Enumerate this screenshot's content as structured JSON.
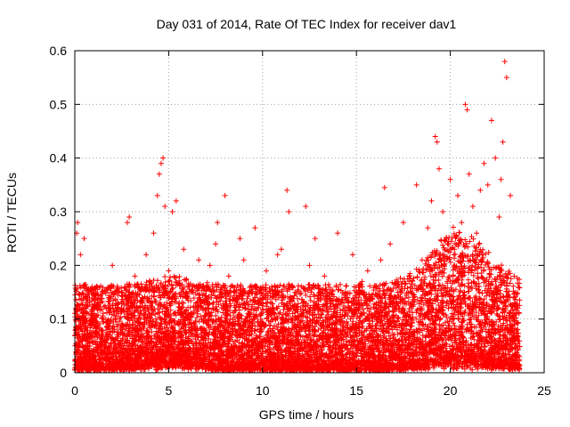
{
  "chart_data": {
    "type": "scatter",
    "title": "Day 031 of 2014, Rate Of TEC Index for receiver dav1",
    "xlabel": "GPS time / hours",
    "ylabel": "ROTI / TECUs",
    "xlim": [
      0,
      25
    ],
    "ylim": [
      0,
      0.6
    ],
    "x_ticks": [
      "0",
      "5",
      "10",
      "15",
      "20",
      "25"
    ],
    "y_ticks": [
      "0",
      "0.1",
      "0.2",
      "0.3",
      "0.4",
      "0.5",
      "0.6"
    ],
    "grid": true,
    "marker": "+",
    "color": "#ff0000",
    "series": [
      {
        "x": [
          0.1,
          0.15,
          0.2,
          0.3,
          0.5,
          0.6,
          0.8,
          1.0,
          1.2,
          1.5,
          1.8,
          2.0,
          2.3,
          2.5,
          2.8,
          2.9,
          3.0,
          3.2,
          3.4,
          3.6,
          3.8,
          4.0,
          4.2,
          4.4,
          4.5,
          4.6,
          4.7,
          4.8,
          5.0,
          5.2,
          5.4,
          5.6,
          5.8,
          6.0,
          6.3,
          6.6,
          6.9,
          7.2,
          7.5,
          7.6,
          7.8,
          8.0,
          8.2,
          8.5,
          8.8,
          9.0,
          9.3,
          9.6,
          9.9,
          10.2,
          10.5,
          10.8,
          11.0,
          11.3,
          11.4,
          11.6,
          12.0,
          12.3,
          12.5,
          12.8,
          13.0,
          13.3,
          13.6,
          14.0,
          14.4,
          14.8,
          15.0,
          15.3,
          15.6,
          16.0,
          16.3,
          16.5,
          16.8,
          17.2,
          17.5,
          17.8,
          18.2,
          18.5,
          18.8,
          19.0,
          19.2,
          19.3,
          19.4,
          19.6,
          19.8,
          20.0,
          20.2,
          20.4,
          20.6,
          20.8,
          20.9,
          21.0,
          21.2,
          21.4,
          21.6,
          21.8,
          22.0,
          22.2,
          22.4,
          22.6,
          22.7,
          22.8,
          22.9,
          23.0,
          23.2,
          23.4,
          23.6
        ],
        "y": [
          0.26,
          0.28,
          0.08,
          0.22,
          0.25,
          0.12,
          0.05,
          0.1,
          0.16,
          0.07,
          0.14,
          0.2,
          0.09,
          0.15,
          0.28,
          0.29,
          0.11,
          0.18,
          0.06,
          0.13,
          0.22,
          0.17,
          0.26,
          0.33,
          0.37,
          0.39,
          0.4,
          0.31,
          0.19,
          0.3,
          0.32,
          0.12,
          0.23,
          0.1,
          0.15,
          0.21,
          0.08,
          0.2,
          0.24,
          0.28,
          0.14,
          0.33,
          0.18,
          0.09,
          0.25,
          0.21,
          0.11,
          0.27,
          0.13,
          0.19,
          0.07,
          0.22,
          0.23,
          0.34,
          0.3,
          0.16,
          0.08,
          0.31,
          0.2,
          0.25,
          0.12,
          0.18,
          0.1,
          0.26,
          0.14,
          0.22,
          0.09,
          0.17,
          0.19,
          0.06,
          0.21,
          0.345,
          0.24,
          0.15,
          0.28,
          0.18,
          0.35,
          0.21,
          0.27,
          0.32,
          0.44,
          0.43,
          0.38,
          0.3,
          0.25,
          0.36,
          0.22,
          0.33,
          0.28,
          0.5,
          0.49,
          0.37,
          0.31,
          0.26,
          0.34,
          0.39,
          0.35,
          0.47,
          0.4,
          0.29,
          0.36,
          0.43,
          0.58,
          0.55,
          0.33,
          0.18,
          0.12
        ]
      }
    ]
  }
}
